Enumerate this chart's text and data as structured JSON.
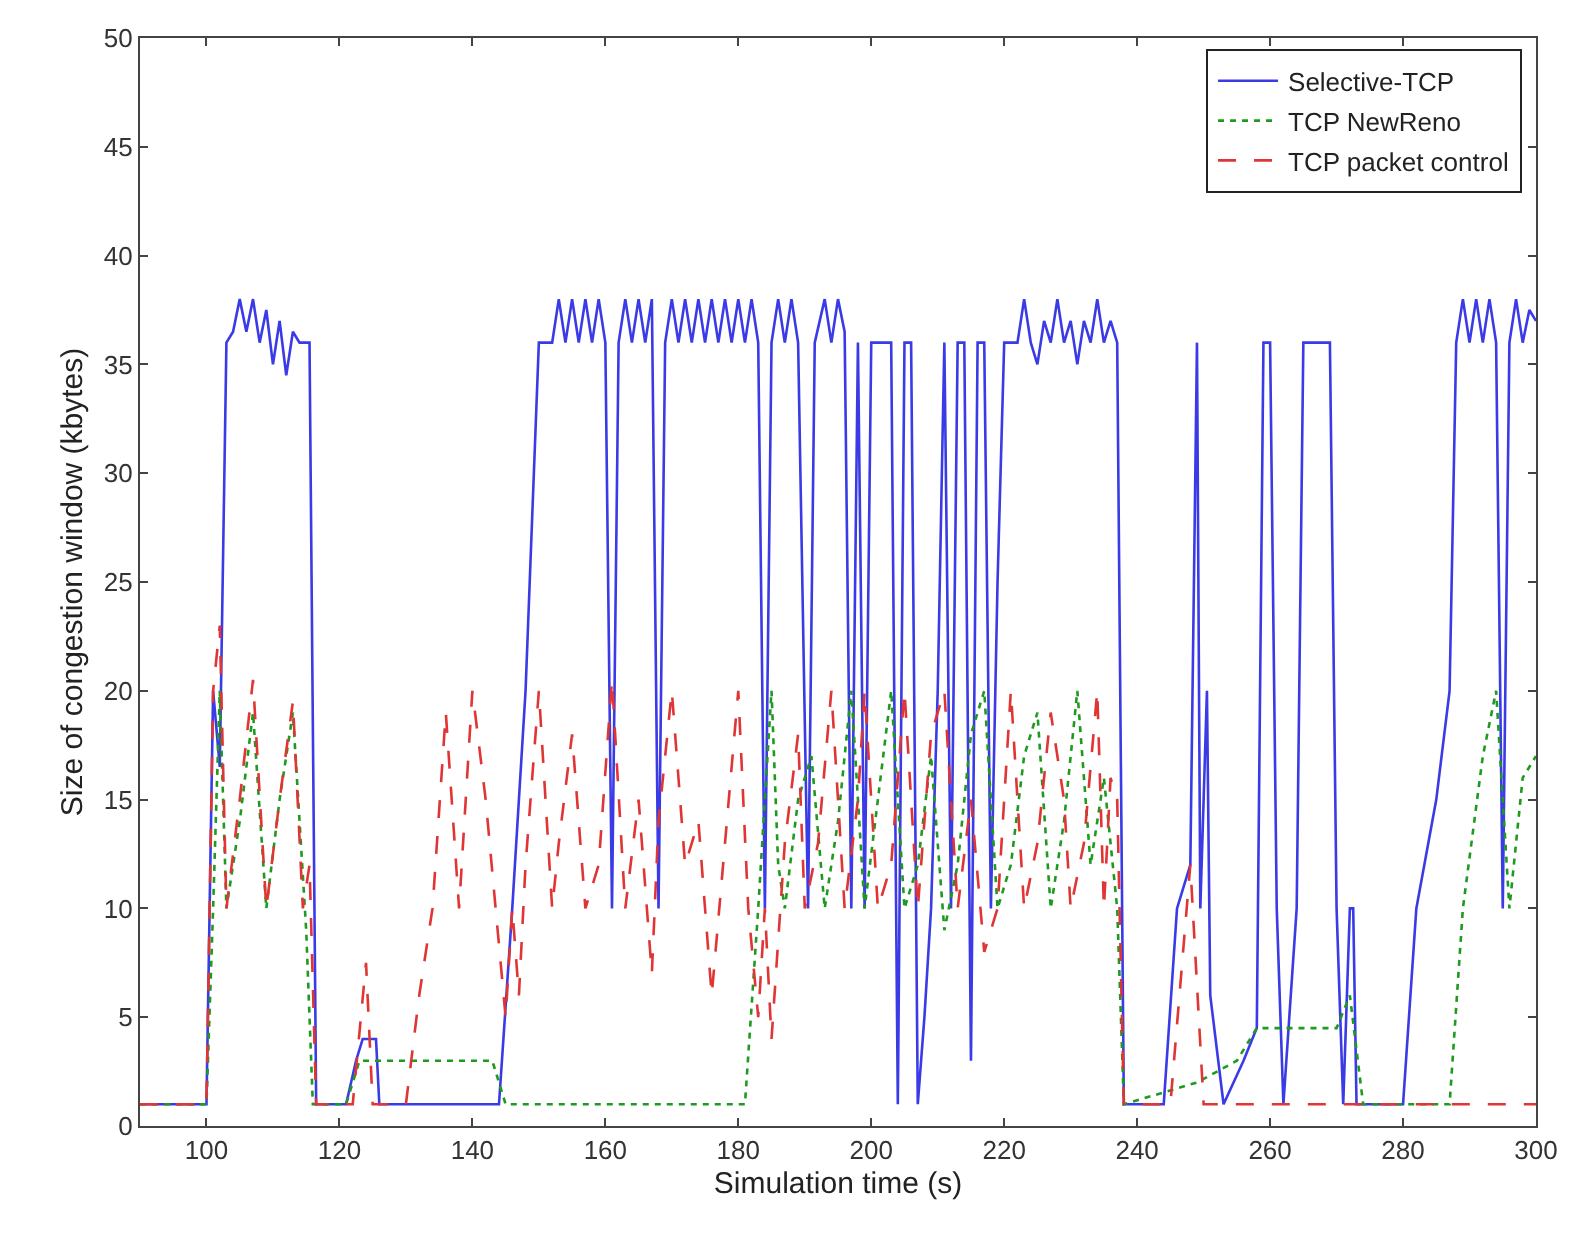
{
  "chart_data": {
    "type": "line",
    "xlabel": "Simulation time (s)",
    "ylabel": "Size of congestion window (kbytes)",
    "xlim": [
      90,
      300
    ],
    "xticks": [
      100,
      120,
      140,
      160,
      180,
      200,
      220,
      240,
      260,
      280,
      300
    ],
    "ylim": [
      0,
      50
    ],
    "yticks": [
      0,
      5,
      10,
      15,
      20,
      25,
      30,
      35,
      40,
      45,
      50
    ],
    "legend": "top right",
    "series": [
      {
        "name": "Selective-TCP",
        "color": "#3a3ae6",
        "line_style": "solid",
        "x": [
          90,
          100,
          101,
          102,
          103,
          104,
          105,
          106,
          107,
          108,
          109,
          110,
          111,
          112,
          113,
          114,
          115.5,
          116.5,
          121,
          122.5,
          123.5,
          125.5,
          126,
          144,
          146,
          148,
          149,
          150,
          152,
          153,
          154,
          155,
          156,
          157,
          158,
          159,
          160,
          161,
          162,
          163,
          164,
          165,
          166,
          167,
          168,
          169,
          170,
          171,
          172,
          173,
          174,
          175,
          176,
          177,
          178,
          179,
          180,
          181,
          182,
          183,
          184,
          185,
          186,
          187,
          188,
          189,
          190.5,
          191.5,
          193,
          194,
          195,
          196,
          197,
          198,
          199,
          200,
          201,
          202,
          203,
          204,
          205,
          206,
          207,
          208,
          209,
          210,
          211,
          212,
          213,
          214,
          215,
          216,
          217,
          218,
          219,
          220,
          222,
          223,
          224,
          225,
          226,
          227,
          228,
          229,
          230,
          231,
          232,
          233,
          234,
          235,
          236,
          237,
          238,
          244,
          246,
          248,
          249,
          249.5,
          250.5,
          251,
          253,
          256,
          258,
          259,
          260,
          261,
          262,
          264,
          265,
          269,
          270,
          271,
          272,
          272.5,
          273,
          280,
          282,
          285,
          287,
          288,
          289,
          290,
          291,
          292,
          293,
          294,
          295,
          296,
          297,
          298,
          299,
          300
        ],
        "values": [
          1,
          1,
          20,
          16.5,
          36,
          36.5,
          38,
          36.5,
          38,
          36,
          37.5,
          35,
          37,
          34.5,
          36.5,
          36,
          36,
          1,
          1,
          3,
          4,
          4,
          1,
          1,
          10,
          20,
          28,
          36,
          36,
          38,
          36,
          38,
          36,
          38,
          36,
          38,
          36,
          10,
          36,
          38,
          36,
          38,
          36,
          38,
          10,
          36,
          38,
          36,
          38,
          36,
          38,
          36,
          38,
          36,
          38,
          36,
          38,
          36,
          38,
          36,
          10,
          36,
          38,
          36,
          38,
          36,
          10,
          36,
          38,
          36,
          38,
          36.5,
          10,
          36,
          10,
          36,
          36,
          36,
          36,
          1,
          36,
          36,
          1,
          5,
          10,
          20,
          36,
          10,
          36,
          36,
          3,
          36,
          36,
          10,
          25,
          36,
          36,
          38,
          36,
          35,
          37,
          36,
          38,
          36,
          37,
          35,
          37,
          36,
          38,
          36,
          37,
          36,
          1,
          1,
          10,
          12,
          36,
          10,
          20,
          6,
          1,
          3,
          4.5,
          36,
          36,
          10,
          1,
          10,
          36,
          36,
          10,
          1,
          10,
          10,
          1,
          1,
          10,
          15,
          20,
          36,
          38,
          36,
          38,
          36,
          38,
          36,
          10,
          36,
          38,
          36,
          37.5,
          37
        ]
      },
      {
        "name": "TCP NewReno",
        "color": "#1f9a1f",
        "line_style": "dotted",
        "x": [
          90,
          100,
          101,
          102,
          103,
          105,
          107,
          109,
          111,
          113,
          115,
          116,
          121,
          123,
          143,
          145,
          181,
          183,
          185,
          186,
          187,
          189,
          191,
          193,
          195,
          197,
          199,
          201,
          203,
          205,
          207,
          209,
          211,
          213,
          215,
          217,
          219,
          221,
          223,
          225,
          227,
          229,
          231,
          233,
          235,
          237,
          238,
          249,
          255,
          258,
          270,
          272,
          274,
          287,
          289,
          292,
          294,
          296,
          298,
          300
        ],
        "values": [
          1,
          1,
          10,
          20,
          10,
          14,
          19,
          10,
          15,
          19,
          9,
          1,
          1,
          3,
          3,
          1,
          1,
          10,
          20,
          12,
          10,
          15,
          17,
          10,
          14,
          20,
          10,
          15,
          20,
          10,
          12,
          17,
          9,
          12,
          18,
          20,
          10,
          12,
          17,
          19,
          10,
          14,
          20,
          12,
          16,
          10,
          1,
          2,
          3,
          4.5,
          4.5,
          6,
          1,
          1,
          10,
          17,
          20,
          10,
          16,
          17
        ]
      },
      {
        "name": "TCP packet control",
        "color": "#e03535",
        "line_style": "dashed",
        "x": [
          90,
          100,
          101,
          102,
          103,
          105,
          107,
          109,
          111,
          113,
          114.5,
          115.5,
          116.5,
          122,
          124,
          125,
          130,
          132,
          134,
          136,
          138,
          140,
          142,
          143.5,
          145,
          146,
          147,
          148,
          150,
          152,
          153,
          155,
          157,
          159,
          161,
          163,
          165,
          167,
          168,
          170,
          172,
          174,
          176,
          178,
          180,
          181.5,
          183,
          184,
          185,
          187,
          189,
          190,
          192,
          194,
          196,
          198,
          199,
          201,
          203,
          205,
          207,
          209,
          211,
          213,
          215,
          217,
          219,
          221,
          223,
          225,
          227,
          229,
          230,
          232,
          234,
          235,
          236,
          237,
          238,
          245,
          248,
          250,
          300
        ],
        "values": [
          1,
          1,
          20,
          23,
          10,
          15,
          20.5,
          10,
          15,
          19.5,
          10,
          12,
          1,
          1,
          7.5,
          1,
          1,
          6,
          10,
          19,
          10,
          20,
          15,
          10,
          5,
          10,
          6,
          12,
          20,
          10,
          13,
          18,
          10,
          12,
          20.5,
          10,
          15,
          7,
          14,
          20,
          12,
          14,
          6,
          13,
          20,
          10,
          5,
          10,
          4,
          13,
          18,
          10,
          13,
          20,
          10,
          15,
          20,
          10,
          12,
          20,
          10,
          18,
          20,
          10,
          15,
          8,
          10,
          20,
          10,
          13,
          19,
          15,
          10,
          13,
          20,
          10,
          16,
          15,
          1,
          1,
          12,
          1,
          1
        ]
      }
    ]
  }
}
